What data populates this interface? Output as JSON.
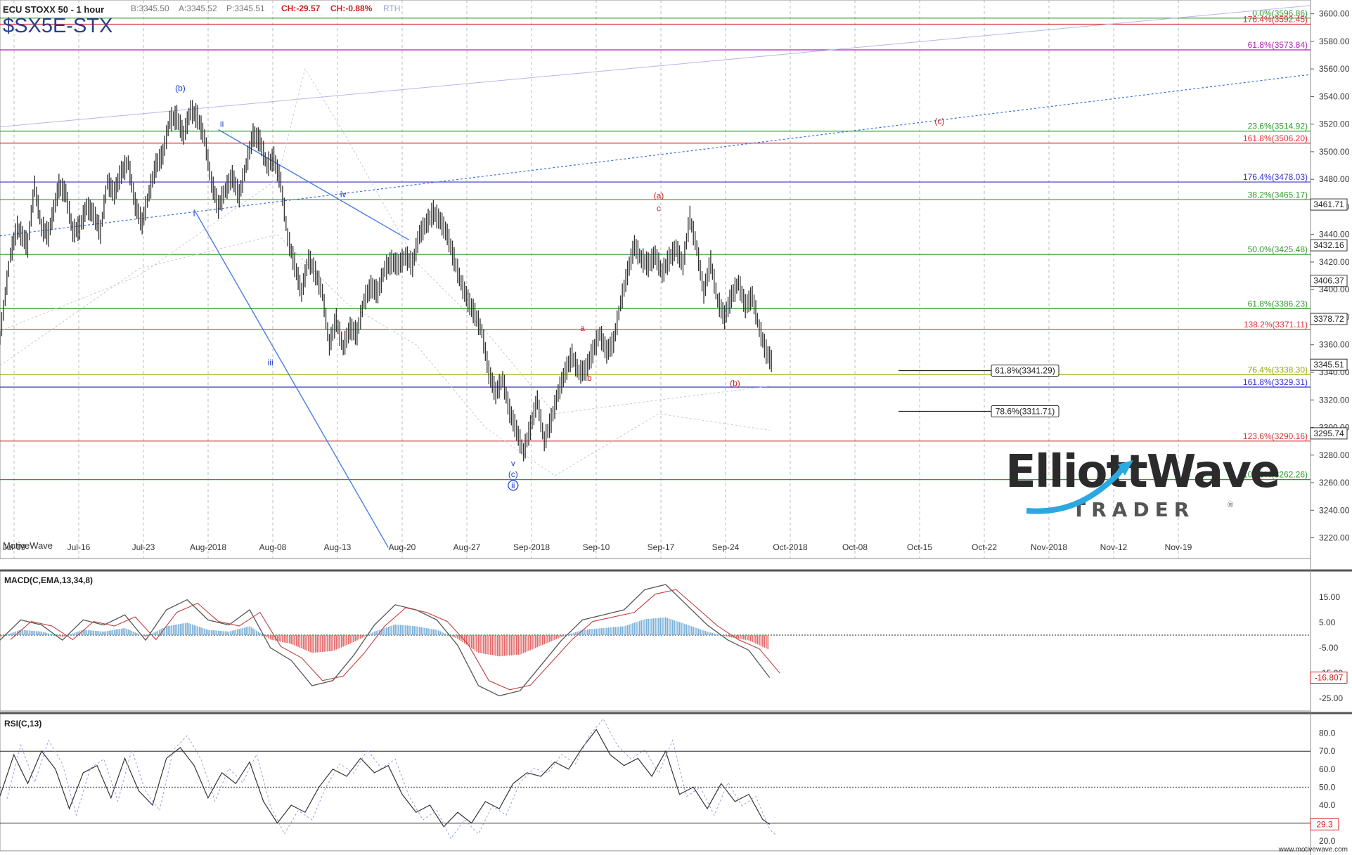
{
  "header": {
    "instrument": "ECU STOXX 50 - 1 hour",
    "bid": "B:3345.50",
    "ask": "A:3345.52",
    "price": "P:3345.51",
    "change": "CH:-29.57",
    "change_pct": "CH:-0.88%",
    "session": "RTH",
    "symbol": "$SX5E-STX"
  },
  "watermark": {
    "line1": "ElliottWave",
    "line2": "TRADER",
    "mark": "®"
  },
  "source_label": "MotiveWave",
  "footer": "www.motivewave.com",
  "colors": {
    "green_level": "#2e9b2e",
    "red_level": "#d9333a",
    "blue_level": "#3333cc",
    "magenta_level": "#b422b4",
    "olive_level": "#9aa800",
    "price_bars": "#303030",
    "macd_pos": "#7ab0d8",
    "macd_neg": "#e36a6a",
    "wave_blue": "#1a3bd6",
    "wave_red": "#d02020"
  },
  "chart_data": [
    {
      "type": "line",
      "title": "ECU STOXX 50 - 1 hour",
      "x_tick_labels": [
        "Jul-09",
        "Jul-16",
        "Jul-23",
        "Aug-2018",
        "Aug-08",
        "Aug-13",
        "Aug-20",
        "Aug-27",
        "Sep-2018",
        "Sep-10",
        "Sep-17",
        "Sep-24",
        "Oct-2018",
        "Oct-08",
        "Oct-15",
        "Oct-22",
        "Nov-2018",
        "Nov-12",
        "Nov-19"
      ],
      "ylim": [
        3205,
        3610
      ],
      "y_ticks": [
        3600,
        3580,
        3560,
        3540,
        3520,
        3500,
        3480,
        3460,
        3440,
        3420,
        3400,
        3380,
        3360,
        3340,
        3320,
        3300,
        3280,
        3260,
        3240,
        3220
      ],
      "y_tick_labels": [
        "3600.00",
        "3580.00",
        "3560.00",
        "3540.00",
        "3520.00",
        "3500.00",
        "3480.00",
        "3460.00",
        "3440.00",
        "3420.00",
        "3400.00",
        "3380.00",
        "3360.00",
        "3340.00",
        "3320.00",
        "3300.00",
        "3280.00",
        "3260.00",
        "3240.00",
        "3220.00"
      ],
      "price_path": [
        [
          0,
          3365
        ],
        [
          3,
          3425
        ],
        [
          5,
          3445
        ],
        [
          8,
          3432
        ],
        [
          10,
          3475
        ],
        [
          12,
          3445
        ],
        [
          14,
          3440
        ],
        [
          16,
          3463
        ],
        [
          17,
          3475
        ],
        [
          19,
          3470
        ],
        [
          21,
          3442
        ],
        [
          23,
          3445
        ],
        [
          25,
          3460
        ],
        [
          27,
          3455
        ],
        [
          29,
          3442
        ],
        [
          31,
          3478
        ],
        [
          33,
          3470
        ],
        [
          35,
          3485
        ],
        [
          37,
          3492
        ],
        [
          39,
          3462
        ],
        [
          41,
          3448
        ],
        [
          43,
          3470
        ],
        [
          45,
          3490
        ],
        [
          47,
          3498
        ],
        [
          49,
          3523
        ],
        [
          51,
          3525
        ],
        [
          53,
          3512
        ],
        [
          55,
          3530
        ],
        [
          57,
          3525
        ],
        [
          59,
          3510
        ],
        [
          61,
          3478
        ],
        [
          63,
          3460
        ],
        [
          65,
          3472
        ],
        [
          67,
          3482
        ],
        [
          69,
          3468
        ],
        [
          71,
          3490
        ],
        [
          73,
          3512
        ],
        [
          75,
          3508
        ],
        [
          77,
          3490
        ],
        [
          79,
          3495
        ],
        [
          81,
          3478
        ],
        [
          83,
          3438
        ],
        [
          85,
          3418
        ],
        [
          87,
          3398
        ],
        [
          89,
          3422
        ],
        [
          91,
          3412
        ],
        [
          93,
          3398
        ],
        [
          95,
          3360
        ],
        [
          97,
          3378
        ],
        [
          99,
          3358
        ],
        [
          101,
          3372
        ],
        [
          103,
          3368
        ],
        [
          105,
          3392
        ],
        [
          107,
          3402
        ],
        [
          109,
          3398
        ],
        [
          111,
          3415
        ],
        [
          113,
          3420
        ],
        [
          115,
          3418
        ],
        [
          117,
          3424
        ],
        [
          119,
          3418
        ],
        [
          121,
          3440
        ],
        [
          123,
          3448
        ],
        [
          125,
          3456
        ],
        [
          127,
          3450
        ],
        [
          129,
          3440
        ],
        [
          131,
          3422
        ],
        [
          133,
          3405
        ],
        [
          135,
          3392
        ],
        [
          137,
          3382
        ],
        [
          139,
          3370
        ],
        [
          141,
          3340
        ],
        [
          143,
          3325
        ],
        [
          145,
          3335
        ],
        [
          147,
          3312
        ],
        [
          149,
          3298
        ],
        [
          151,
          3282
        ],
        [
          153,
          3300
        ],
        [
          155,
          3320
        ],
        [
          157,
          3290
        ],
        [
          159,
          3305
        ],
        [
          161,
          3325
        ],
        [
          163,
          3340
        ],
        [
          165,
          3352
        ],
        [
          167,
          3340
        ],
        [
          169,
          3342
        ],
        [
          171,
          3355
        ],
        [
          173,
          3368
        ],
        [
          175,
          3355
        ],
        [
          177,
          3362
        ],
        [
          179,
          3390
        ],
        [
          181,
          3412
        ],
        [
          183,
          3432
        ],
        [
          185,
          3422
        ],
        [
          187,
          3418
        ],
        [
          189,
          3425
        ],
        [
          191,
          3412
        ],
        [
          193,
          3422
        ],
        [
          195,
          3430
        ],
        [
          197,
          3418
        ],
        [
          199,
          3452
        ],
        [
          201,
          3430
        ],
        [
          203,
          3398
        ],
        [
          205,
          3420
        ],
        [
          207,
          3392
        ],
        [
          209,
          3380
        ],
        [
          211,
          3395
        ],
        [
          213,
          3405
        ],
        [
          215,
          3388
        ],
        [
          217,
          3395
        ],
        [
          219,
          3372
        ],
        [
          221,
          3355
        ],
        [
          223,
          3346
        ]
      ],
      "x_domain": [
        0,
        378
      ],
      "fib_levels": [
        {
          "label": "0.0%(3596.86)",
          "value": 3596.86,
          "color": "green"
        },
        {
          "label": "176.4%(3592.45)",
          "value": 3592.45,
          "color": "red"
        },
        {
          "label": "61.8%(3573.84)",
          "value": 3573.84,
          "color": "magenta"
        },
        {
          "label": "23.6%(3514.92)",
          "value": 3514.92,
          "color": "green"
        },
        {
          "label": "161.8%(3506.20)",
          "value": 3506.2,
          "color": "red"
        },
        {
          "label": "176.4%(3478.03)",
          "value": 3478.03,
          "color": "blue"
        },
        {
          "label": "38.2%(3465.17)",
          "value": 3465.17,
          "color": "green"
        },
        {
          "label": "50.0%(3425.48)",
          "value": 3425.48,
          "color": "green"
        },
        {
          "label": "61.8%(3386.23)",
          "value": 3386.23,
          "color": "green"
        },
        {
          "label": "138.2%(3371.11)",
          "value": 3371.11,
          "color": "red"
        },
        {
          "label": "76.4%(3338.30)",
          "value": 3338.3,
          "color": "olive"
        },
        {
          "label": "161.8%(3329.31)",
          "value": 3329.31,
          "color": "blue"
        },
        {
          "label": "123.6%(3290.16)",
          "value": 3290.16,
          "color": "red"
        },
        {
          "label": "100.0%(3262.26)",
          "value": 3262.26,
          "color": "green"
        }
      ],
      "target_boxes": [
        {
          "label": "61.8%(3341.29)",
          "value": 3341.29
        },
        {
          "label": "78.6%(3311.71)",
          "value": 3311.71
        }
      ],
      "price_badges": [
        {
          "label": "3461.71",
          "value": 3461.71
        },
        {
          "label": "3432.16",
          "value": 3432.16
        },
        {
          "label": "3406.37",
          "value": 3406.37
        },
        {
          "label": "3378.72",
          "value": 3378.72
        },
        {
          "label": "3345.51",
          "value": 3345.51
        },
        {
          "label": "3295.74",
          "value": 3295.74
        }
      ],
      "wave_labels": [
        {
          "text": "(b)",
          "x": 52,
          "y": 3544,
          "color": "blue"
        },
        {
          "text": "ii",
          "x": 64,
          "y": 3518,
          "color": "blue"
        },
        {
          "text": "i",
          "x": 56,
          "y": 3453,
          "color": "blue"
        },
        {
          "text": "iii",
          "x": 78,
          "y": 3345,
          "color": "blue"
        },
        {
          "text": "iv",
          "x": 99,
          "y": 3467,
          "color": "blue"
        },
        {
          "text": "v",
          "x": 148,
          "y": 3272,
          "color": "blue"
        },
        {
          "text": "(c)",
          "x": 148,
          "y": 3264,
          "color": "blue"
        },
        {
          "text": "ii",
          "x": 148,
          "y": 3256,
          "color": "blue",
          "circled": true
        },
        {
          "text": "a",
          "x": 168,
          "y": 3370,
          "color": "red"
        },
        {
          "text": "b",
          "x": 170,
          "y": 3334,
          "color": "red"
        },
        {
          "text": "(a)",
          "x": 190,
          "y": 3466,
          "color": "red"
        },
        {
          "text": "c",
          "x": 190,
          "y": 3457,
          "color": "red"
        },
        {
          "text": "(b)",
          "x": 212,
          "y": 3330,
          "color": "red"
        },
        {
          "text": "(c)",
          "x": 271,
          "y": 3520,
          "color": "red"
        }
      ]
    },
    {
      "type": "line",
      "title": "MACD(C,EMA,13,34,8)",
      "ylim": [
        -30,
        25
      ],
      "y_tick_labels": [
        "15.00",
        "5.00",
        "-5.00",
        "-15.00",
        "-25.00"
      ],
      "last_value_label": "-16.807",
      "last_value": -16.807,
      "macd_path": [
        [
          0,
          -2
        ],
        [
          6,
          6
        ],
        [
          12,
          4
        ],
        [
          18,
          -2
        ],
        [
          24,
          6
        ],
        [
          30,
          4
        ],
        [
          36,
          8
        ],
        [
          42,
          -2
        ],
        [
          48,
          10
        ],
        [
          54,
          14
        ],
        [
          60,
          6
        ],
        [
          66,
          4
        ],
        [
          72,
          10
        ],
        [
          78,
          -5
        ],
        [
          84,
          -10
        ],
        [
          90,
          -20
        ],
        [
          96,
          -18
        ],
        [
          102,
          -8
        ],
        [
          108,
          4
        ],
        [
          114,
          12
        ],
        [
          120,
          10
        ],
        [
          126,
          6
        ],
        [
          132,
          -4
        ],
        [
          138,
          -20
        ],
        [
          144,
          -24
        ],
        [
          150,
          -22
        ],
        [
          156,
          -12
        ],
        [
          162,
          -2
        ],
        [
          168,
          6
        ],
        [
          174,
          8
        ],
        [
          180,
          10
        ],
        [
          186,
          18
        ],
        [
          192,
          20
        ],
        [
          198,
          12
        ],
        [
          204,
          4
        ],
        [
          210,
          -2
        ],
        [
          216,
          -6
        ],
        [
          222,
          -16.8
        ]
      ]
    },
    {
      "type": "line",
      "title": "RSI(C,13)",
      "ylim": [
        15,
        90
      ],
      "y_tick_labels": [
        "80.0",
        "70.0",
        "60.0",
        "50.0",
        "40.0",
        "30.0",
        "20.0"
      ],
      "last_value_label": "29.3",
      "last_value": 29.3,
      "rsi_path": [
        [
          0,
          45
        ],
        [
          4,
          68
        ],
        [
          8,
          52
        ],
        [
          12,
          70
        ],
        [
          16,
          60
        ],
        [
          20,
          38
        ],
        [
          24,
          58
        ],
        [
          28,
          62
        ],
        [
          32,
          44
        ],
        [
          36,
          66
        ],
        [
          40,
          48
        ],
        [
          44,
          40
        ],
        [
          48,
          66
        ],
        [
          52,
          72
        ],
        [
          56,
          62
        ],
        [
          60,
          44
        ],
        [
          64,
          58
        ],
        [
          68,
          52
        ],
        [
          72,
          64
        ],
        [
          76,
          42
        ],
        [
          80,
          30
        ],
        [
          84,
          40
        ],
        [
          88,
          36
        ],
        [
          92,
          50
        ],
        [
          96,
          60
        ],
        [
          100,
          56
        ],
        [
          104,
          66
        ],
        [
          108,
          58
        ],
        [
          112,
          62
        ],
        [
          116,
          46
        ],
        [
          120,
          36
        ],
        [
          124,
          40
        ],
        [
          128,
          28
        ],
        [
          132,
          36
        ],
        [
          136,
          30
        ],
        [
          140,
          42
        ],
        [
          144,
          38
        ],
        [
          148,
          52
        ],
        [
          152,
          58
        ],
        [
          156,
          56
        ],
        [
          160,
          64
        ],
        [
          164,
          60
        ],
        [
          168,
          72
        ],
        [
          172,
          82
        ],
        [
          176,
          68
        ],
        [
          180,
          62
        ],
        [
          184,
          66
        ],
        [
          188,
          56
        ],
        [
          192,
          70
        ],
        [
          196,
          46
        ],
        [
          200,
          50
        ],
        [
          204,
          38
        ],
        [
          208,
          52
        ],
        [
          212,
          42
        ],
        [
          216,
          46
        ],
        [
          220,
          32
        ],
        [
          222,
          29.3
        ]
      ]
    }
  ]
}
